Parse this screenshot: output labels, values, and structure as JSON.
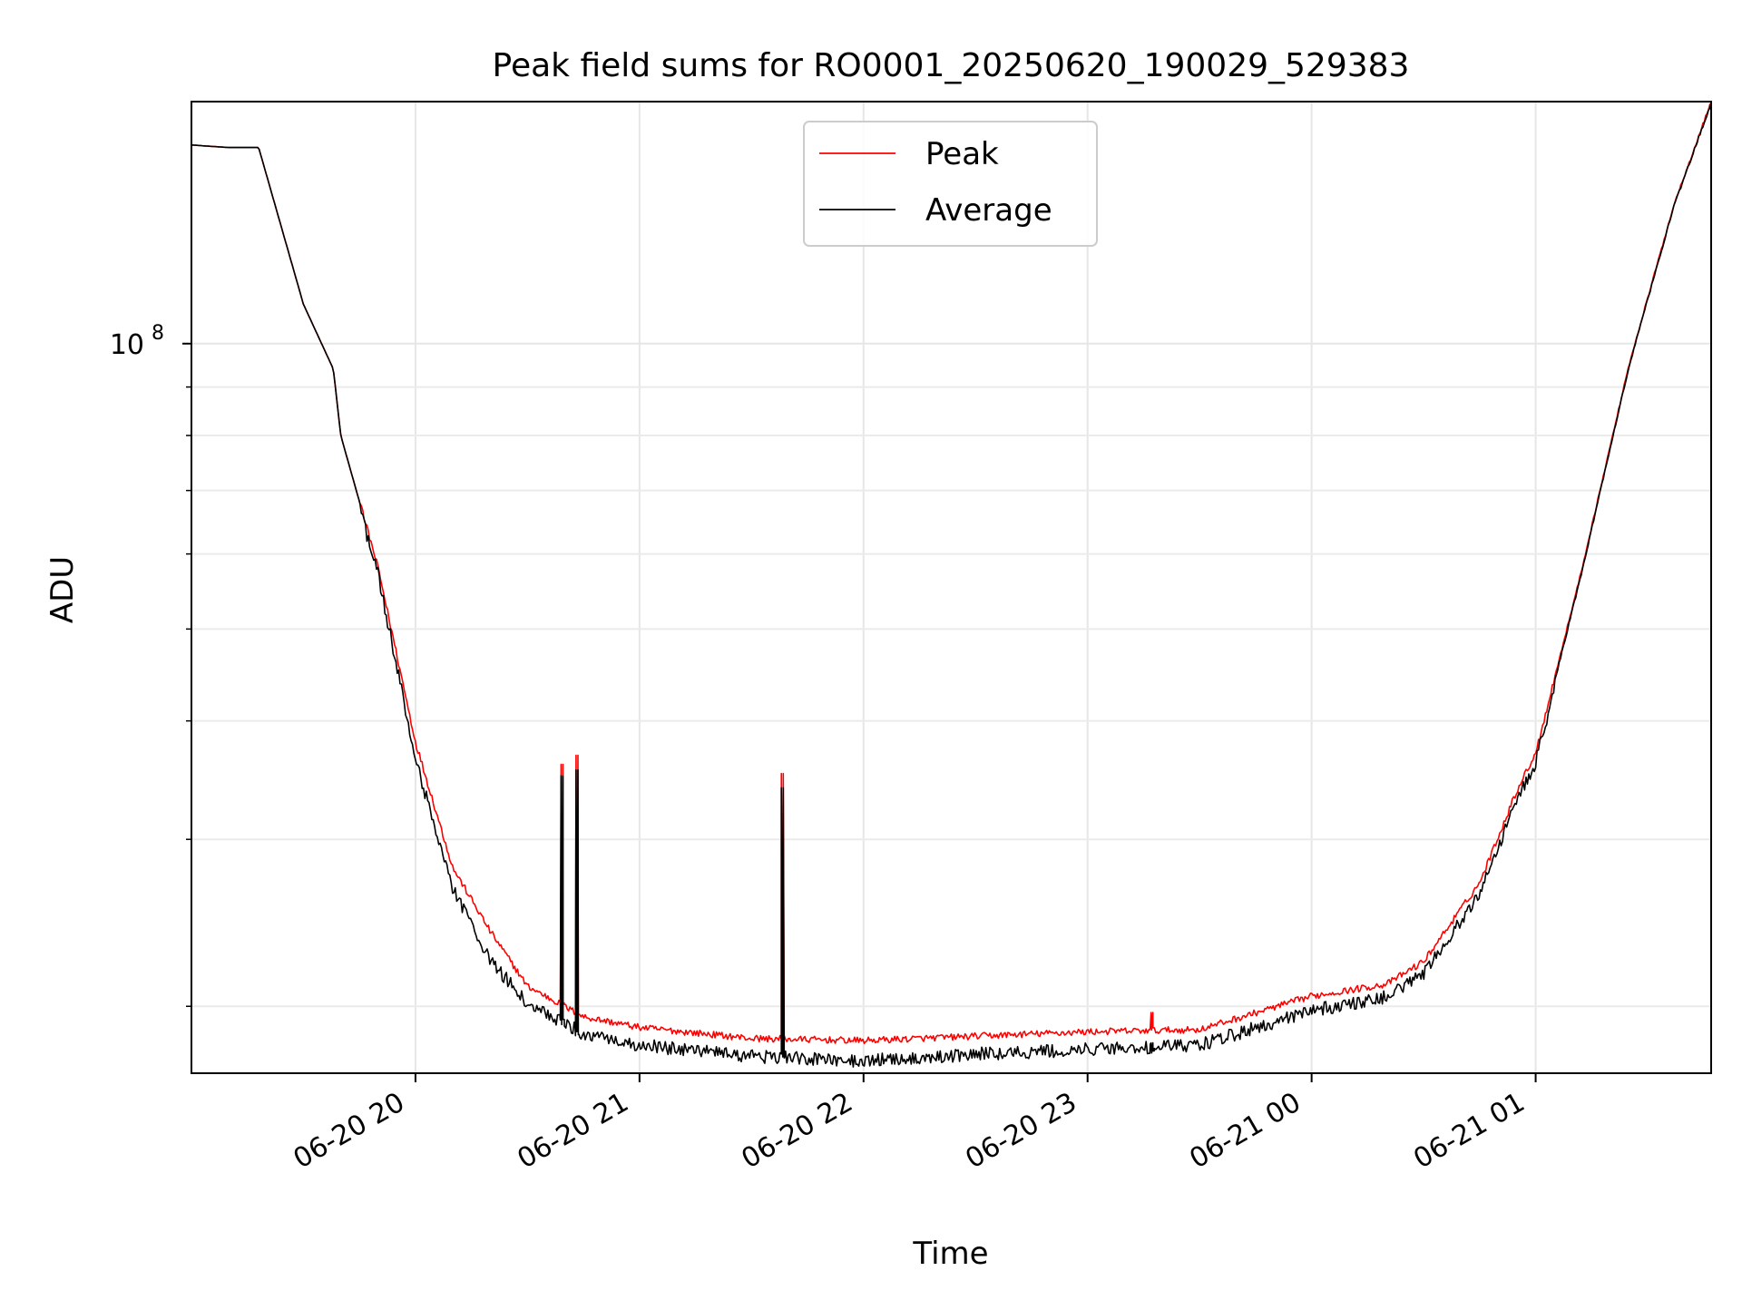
{
  "chart_data": {
    "type": "line",
    "title": "Peak field sums for RO0001_20250620_190029_529383",
    "xlabel": "Time",
    "ylabel": "ADU",
    "y_scale": "log",
    "grid": true,
    "grid_minor": true,
    "legend_position": "top-center",
    "xlim": [
      "2025-06-20 19:00",
      "2025-06-21 01:47"
    ],
    "ylim": [
      17000000,
      180000000
    ],
    "x_ticks": [
      {
        "value": "2025-06-20 20:00",
        "label": "06-20 20"
      },
      {
        "value": "2025-06-20 21:00",
        "label": "06-20 21"
      },
      {
        "value": "2025-06-20 22:00",
        "label": "06-20 22"
      },
      {
        "value": "2025-06-20 23:00",
        "label": "06-20 23"
      },
      {
        "value": "2025-06-21 00:00",
        "label": "06-21 00"
      },
      {
        "value": "2025-06-21 01:00",
        "label": "06-21 01"
      }
    ],
    "y_ticks": [
      {
        "value": 100000000,
        "label_base": "10",
        "label_exp": "8"
      }
    ],
    "y_minor_ticks": [
      20000000,
      30000000,
      40000000,
      50000000,
      60000000,
      70000000,
      80000000,
      90000000,
      200000000
    ],
    "series": [
      {
        "name": "Peak",
        "color": "#ff0000",
        "x": [
          "2025-06-20 19:00",
          "2025-06-20 19:10",
          "2025-06-20 19:18",
          "2025-06-20 19:30",
          "2025-06-20 19:38",
          "2025-06-20 19:40",
          "2025-06-20 19:50",
          "2025-06-20 20:00",
          "2025-06-20 20:10",
          "2025-06-20 20:20",
          "2025-06-20 20:30",
          "2025-06-20 20:45",
          "2025-06-20 21:00",
          "2025-06-20 21:30",
          "2025-06-20 22:00",
          "2025-06-20 22:30",
          "2025-06-20 23:00",
          "2025-06-20 23:30",
          "2025-06-21 00:00",
          "2025-06-21 00:20",
          "2025-06-21 00:30",
          "2025-06-21 00:45",
          "2025-06-21 00:55",
          "2025-06-21 01:00",
          "2025-06-21 01:12",
          "2025-06-21 01:25",
          "2025-06-21 01:37",
          "2025-06-21 01:47"
        ],
        "y": [
          162000000,
          161000000,
          161000000,
          110000000,
          94000000,
          80000000,
          58000000,
          38000000,
          28000000,
          24000000,
          21000000,
          19500000,
          19000000,
          18500000,
          18400000,
          18600000,
          18800000,
          18900000,
          20500000,
          21100000,
          22300000,
          27000000,
          33800000,
          37000000,
          57000000,
          95000000,
          140000000,
          180000000
        ]
      },
      {
        "name": "Average",
        "color": "#000000",
        "x": [
          "2025-06-20 19:00",
          "2025-06-20 19:10",
          "2025-06-20 19:18",
          "2025-06-20 19:30",
          "2025-06-20 19:38",
          "2025-06-20 19:40",
          "2025-06-20 19:50",
          "2025-06-20 20:00",
          "2025-06-20 20:10",
          "2025-06-20 20:20",
          "2025-06-20 20:30",
          "2025-06-20 20:45",
          "2025-06-20 21:00",
          "2025-06-20 21:30",
          "2025-06-20 22:00",
          "2025-06-20 22:30",
          "2025-06-20 23:00",
          "2025-06-20 23:30",
          "2025-06-21 00:00",
          "2025-06-21 00:20",
          "2025-06-21 00:30",
          "2025-06-21 00:45",
          "2025-06-21 00:55",
          "2025-06-21 01:00",
          "2025-06-21 01:12",
          "2025-06-21 01:25",
          "2025-06-21 01:37",
          "2025-06-21 01:47"
        ],
        "y": [
          162000000,
          161000000,
          161000000,
          110000000,
          94000000,
          80000000,
          58000000,
          37000000,
          27000000,
          22700000,
          20500000,
          19000000,
          18500000,
          18000000,
          17800000,
          18100000,
          18300000,
          18500000,
          20100000,
          20800000,
          22000000,
          26700000,
          33500000,
          36700000,
          56800000,
          95000000,
          140000000,
          180000000
        ]
      }
    ],
    "spikes": [
      {
        "x": "2025-06-20 20:39",
        "peak": 36000000,
        "average": 35000000
      },
      {
        "x": "2025-06-20 20:43",
        "peak": 36800000,
        "average": 35500000
      },
      {
        "x": "2025-06-20 21:38",
        "peak": 35200000,
        "average": 34000000
      },
      {
        "x": "2025-06-20 23:17",
        "peak": 19700000,
        "average": 18300000
      }
    ]
  }
}
